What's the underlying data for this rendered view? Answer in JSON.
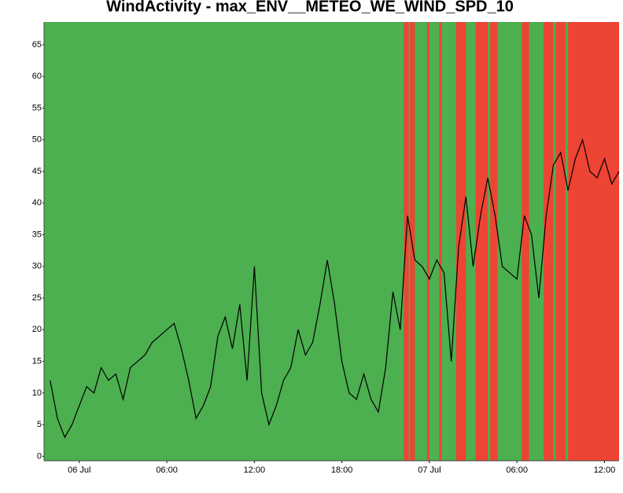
{
  "chart_data": {
    "type": "line",
    "title": "WindActivity - max_ENV__METEO_WE_WIND_SPD_10",
    "x": [
      "05 Jul 22:00",
      "05 Jul 22:30",
      "05 Jul 23:00",
      "05 Jul 23:30",
      "06 Jul 00:00",
      "06 Jul 00:30",
      "06 Jul 01:00",
      "06 Jul 01:30",
      "06 Jul 02:00",
      "06 Jul 02:30",
      "06 Jul 03:00",
      "06 Jul 03:30",
      "06 Jul 04:00",
      "06 Jul 04:30",
      "06 Jul 05:00",
      "06 Jul 05:30",
      "06 Jul 06:00",
      "06 Jul 06:30",
      "06 Jul 07:00",
      "06 Jul 07:30",
      "06 Jul 08:00",
      "06 Jul 08:30",
      "06 Jul 09:00",
      "06 Jul 09:30",
      "06 Jul 10:00",
      "06 Jul 10:30",
      "06 Jul 11:00",
      "06 Jul 11:30",
      "06 Jul 12:00",
      "06 Jul 12:30",
      "06 Jul 13:00",
      "06 Jul 13:30",
      "06 Jul 14:00",
      "06 Jul 14:30",
      "06 Jul 15:00",
      "06 Jul 15:30",
      "06 Jul 16:00",
      "06 Jul 16:30",
      "06 Jul 17:00",
      "06 Jul 17:30",
      "06 Jul 18:00",
      "06 Jul 18:30",
      "06 Jul 19:00",
      "06 Jul 19:30",
      "06 Jul 20:00",
      "06 Jul 20:30",
      "06 Jul 21:00",
      "06 Jul 21:30",
      "06 Jul 22:00",
      "06 Jul 22:30",
      "06 Jul 23:00",
      "06 Jul 23:30",
      "07 Jul 00:00",
      "07 Jul 00:30",
      "07 Jul 01:00",
      "07 Jul 01:30",
      "07 Jul 02:00",
      "07 Jul 02:30",
      "07 Jul 03:00",
      "07 Jul 03:30",
      "07 Jul 04:00",
      "07 Jul 04:30",
      "07 Jul 05:00",
      "07 Jul 05:30",
      "07 Jul 06:00",
      "07 Jul 06:30",
      "07 Jul 07:00",
      "07 Jul 07:30",
      "07 Jul 08:00",
      "07 Jul 08:30",
      "07 Jul 09:00",
      "07 Jul 09:30",
      "07 Jul 10:00",
      "07 Jul 10:30",
      "07 Jul 11:00",
      "07 Jul 11:30",
      "07 Jul 12:00",
      "07 Jul 12:30",
      "07 Jul 13:00"
    ],
    "values": [
      12,
      6,
      3,
      5,
      8,
      11,
      10,
      14,
      12,
      13,
      9,
      14,
      15,
      16,
      18,
      19,
      20,
      21,
      17,
      12,
      6,
      8,
      11,
      19,
      22,
      17,
      24,
      12,
      30,
      10,
      5,
      8,
      12,
      14,
      20,
      16,
      18,
      24,
      31,
      24,
      15,
      10,
      9,
      13,
      9,
      7,
      14,
      26,
      20,
      38,
      31,
      30,
      28,
      31,
      29,
      15,
      33,
      41,
      30,
      38,
      44,
      38,
      30,
      29,
      28,
      38,
      35,
      25,
      38,
      46,
      48,
      42,
      47,
      50,
      45,
      44,
      47,
      43,
      45
    ],
    "color": "#000000",
    "background_color": "#4caf50",
    "band_color": "#ee4433",
    "bands": [
      {
        "start": "06 Jul 22:15",
        "end": "06 Jul 22:35"
      },
      {
        "start": "06 Jul 22:40",
        "end": "06 Jul 23:00"
      },
      {
        "start": "06 Jul 23:50",
        "end": "07 Jul 00:00"
      },
      {
        "start": "07 Jul 00:40",
        "end": "07 Jul 00:50"
      },
      {
        "start": "07 Jul 01:50",
        "end": "07 Jul 02:30"
      },
      {
        "start": "07 Jul 03:10",
        "end": "07 Jul 04:00"
      },
      {
        "start": "07 Jul 04:10",
        "end": "07 Jul 04:40"
      },
      {
        "start": "07 Jul 06:20",
        "end": "07 Jul 06:50"
      },
      {
        "start": "07 Jul 07:50",
        "end": "07 Jul 08:30"
      },
      {
        "start": "07 Jul 08:40",
        "end": "07 Jul 09:20"
      },
      {
        "start": "07 Jul 09:30",
        "end": "07 Jul 13:00"
      }
    ],
    "xlim": [
      "05 Jul 21:35",
      "07 Jul 13:00"
    ],
    "xticks": [
      {
        "value": "06 Jul 00:00",
        "label": "06 Jul"
      },
      {
        "value": "06 Jul 06:00",
        "label": "06:00"
      },
      {
        "value": "06 Jul 12:00",
        "label": "12:00"
      },
      {
        "value": "06 Jul 18:00",
        "label": "18:00"
      },
      {
        "value": "07 Jul 00:00",
        "label": "07 Jul"
      },
      {
        "value": "07 Jul 06:00",
        "label": "06:00"
      },
      {
        "value": "07 Jul 12:00",
        "label": "12:00"
      }
    ],
    "ylim": [
      -0.7,
      68.6
    ],
    "yticks": [
      0,
      5,
      10,
      15,
      20,
      25,
      30,
      35,
      40,
      45,
      50,
      55,
      60,
      65
    ]
  }
}
